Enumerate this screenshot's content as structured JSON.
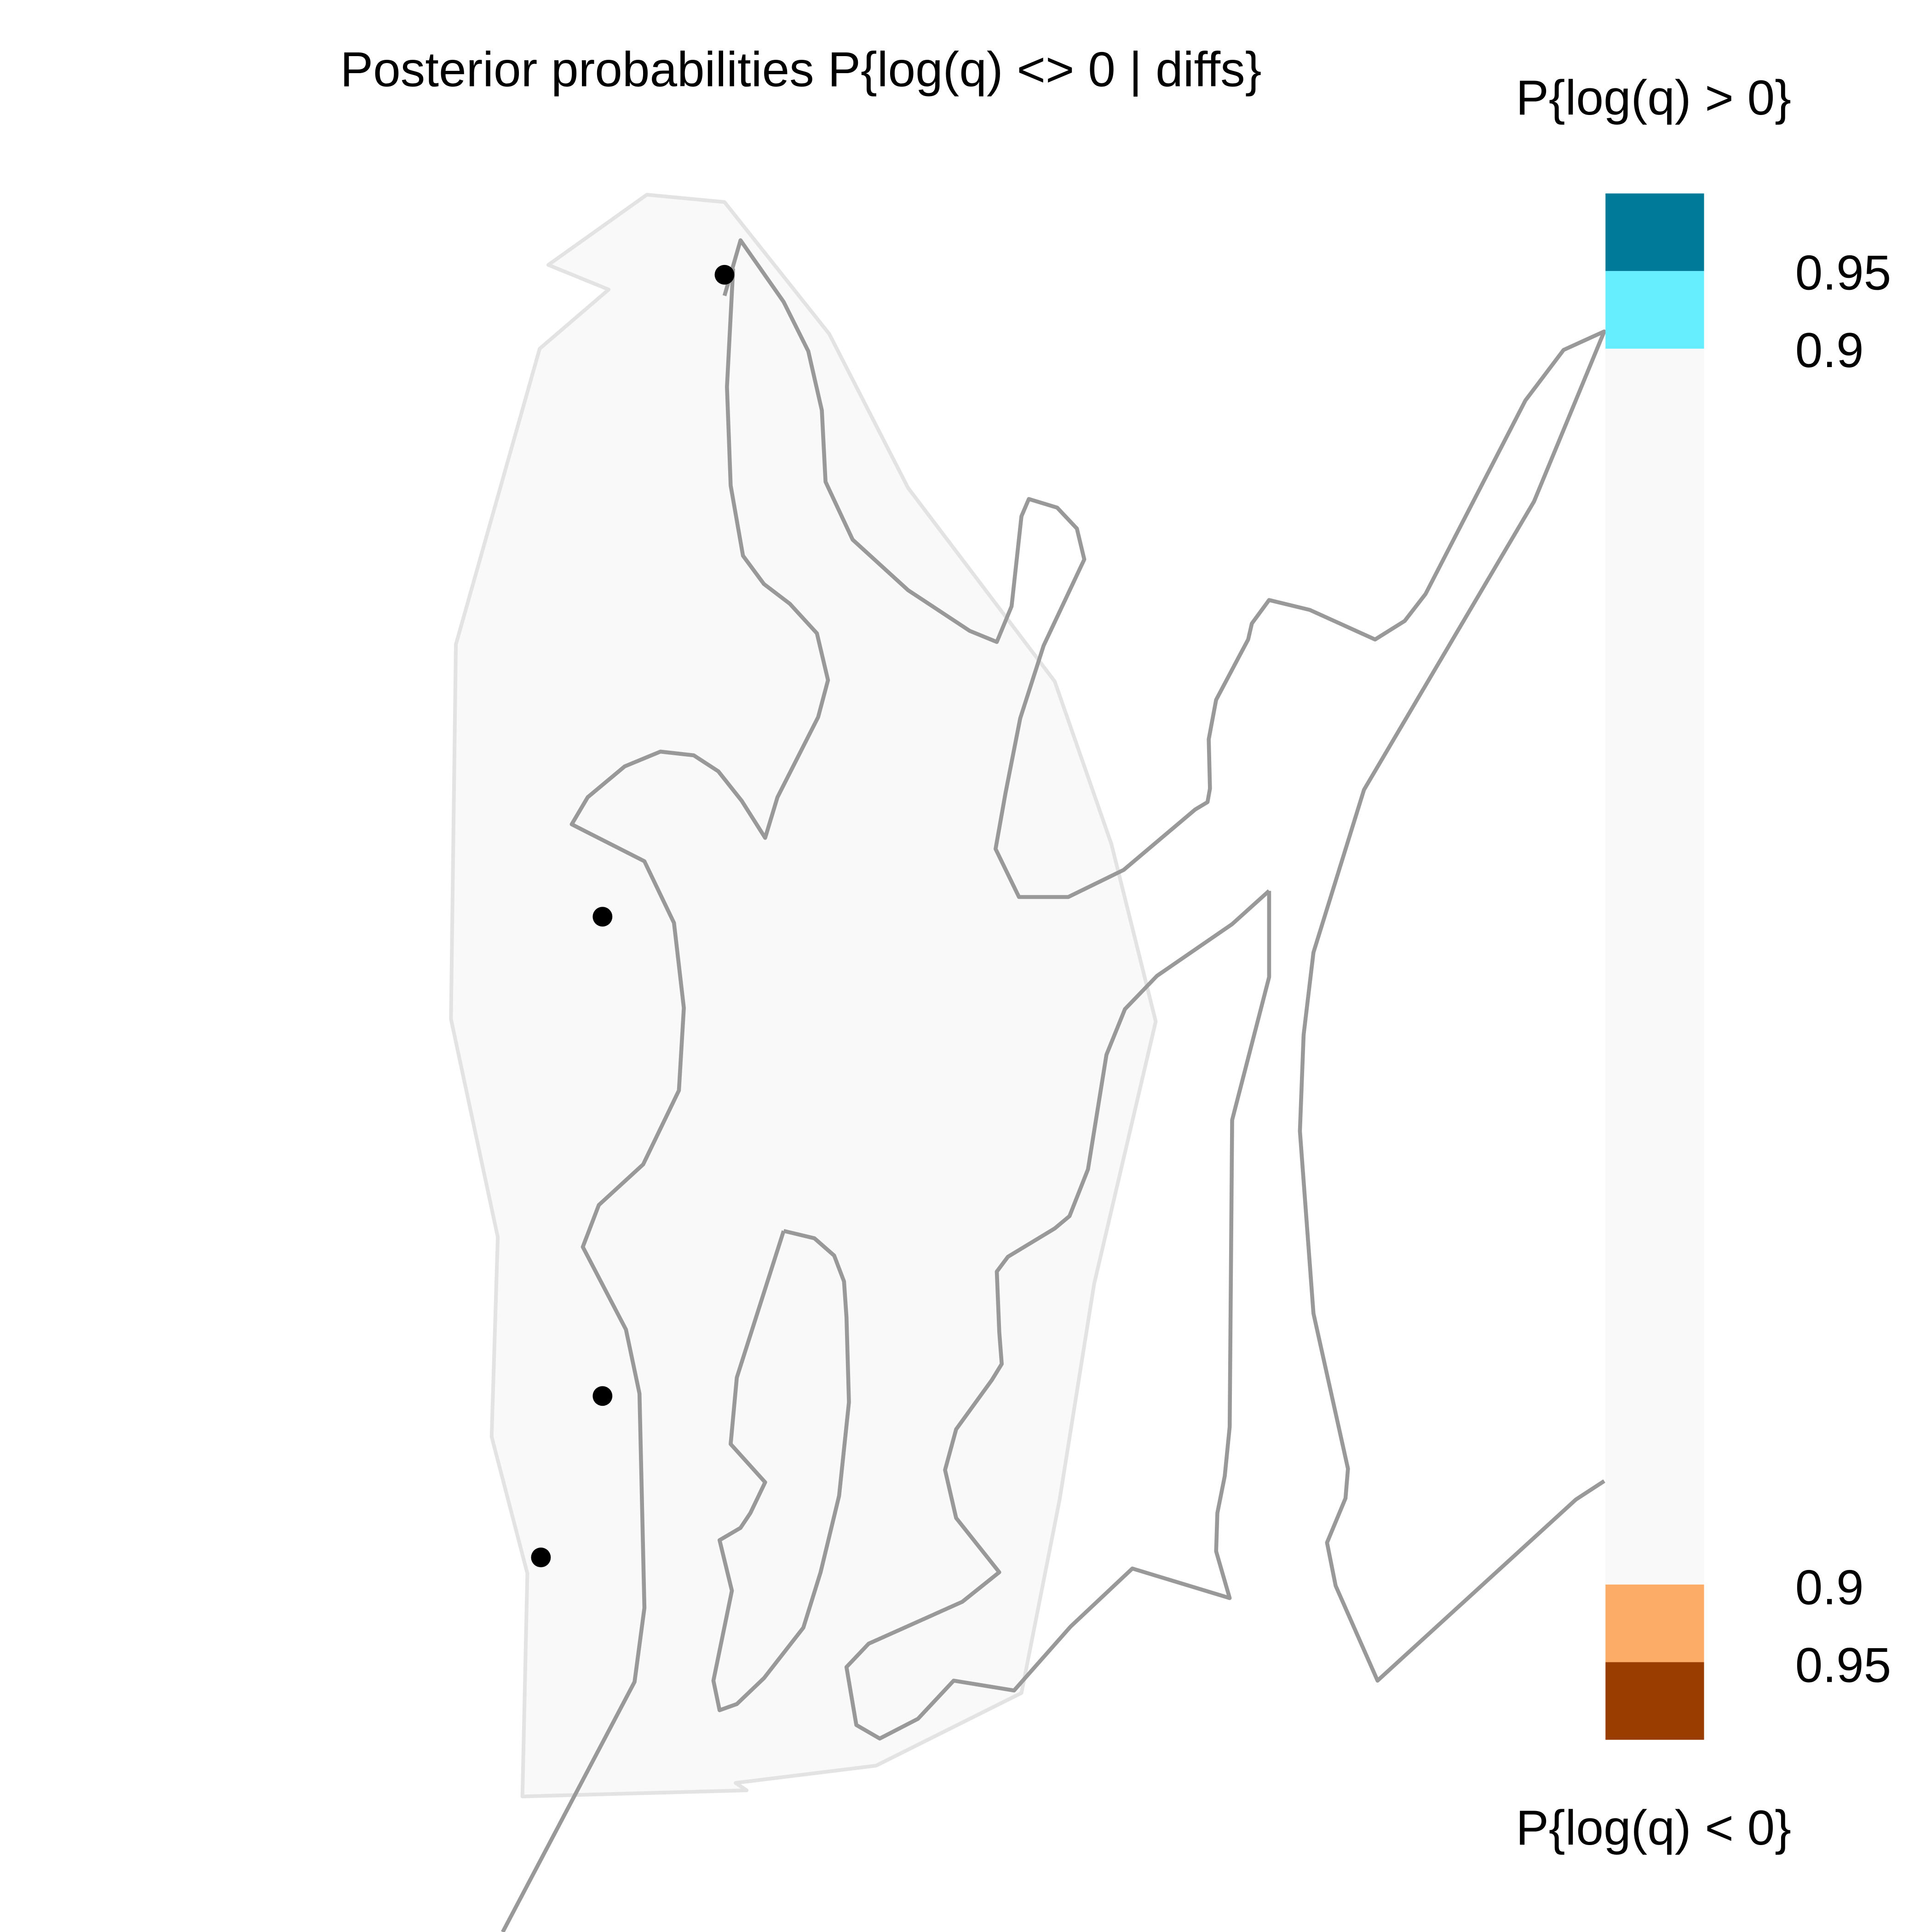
{
  "title": "Posterior probabilities P{log(q) <> 0 | diffs}",
  "legend": {
    "top_title": "P{log(q) > 0}",
    "bottom_title": "P{log(q) < 0}",
    "ticks_positive": [
      "0.95",
      "0.9"
    ],
    "ticks_negative": [
      "0.9",
      "0.95"
    ],
    "colors": {
      "positive_095": "#007A99",
      "positive_090": "#66EEFF",
      "neutral": "#F9F9F9",
      "negative_090": "#FCAC66",
      "negative_095": "#993D00"
    }
  },
  "map": {
    "region_fill": "#F9F9F9",
    "region_outline_color": "#E3E3E3",
    "boundary_color": "#999999",
    "sample_point_count": 4,
    "sample_point_color": "#000000"
  }
}
